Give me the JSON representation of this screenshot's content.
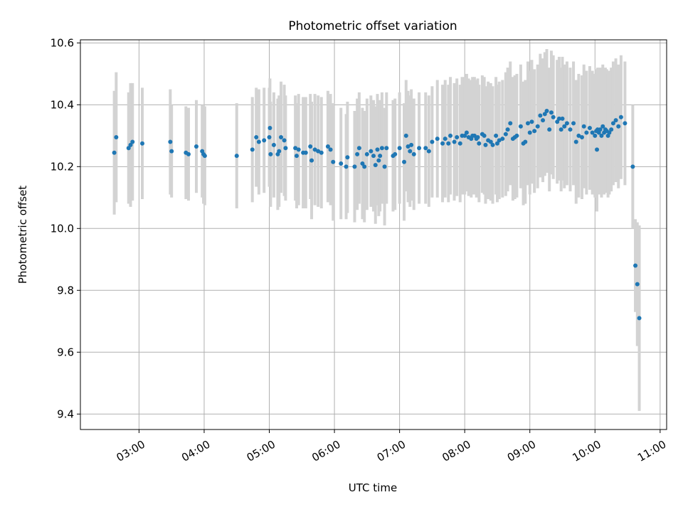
{
  "chart_data": {
    "type": "scatter",
    "title": "Photometric offset variation",
    "xlabel": "UTC time",
    "ylabel": "Photometric offset",
    "grid": true,
    "xlim": [
      2.1,
      11.1
    ],
    "ylim": [
      9.35,
      10.61
    ],
    "x_ticks": [
      {
        "value": 3,
        "label": "03:00"
      },
      {
        "value": 4,
        "label": "04:00"
      },
      {
        "value": 5,
        "label": "05:00"
      },
      {
        "value": 6,
        "label": "06:00"
      },
      {
        "value": 7,
        "label": "07:00"
      },
      {
        "value": 8,
        "label": "08:00"
      },
      {
        "value": 9,
        "label": "09:00"
      },
      {
        "value": 10,
        "label": "10:00"
      },
      {
        "value": 11,
        "label": "11:00"
      }
    ],
    "y_ticks": [
      {
        "value": 9.4,
        "label": "9.4"
      },
      {
        "value": 9.6,
        "label": "9.6"
      },
      {
        "value": 9.8,
        "label": "9.8"
      },
      {
        "value": 10.0,
        "label": "10.0"
      },
      {
        "value": 10.2,
        "label": "10.2"
      },
      {
        "value": 10.4,
        "label": "10.4"
      },
      {
        "value": 10.6,
        "label": "10.6"
      }
    ],
    "colors": {
      "point": "#1f77b4",
      "error_bar": "#d3d3d3",
      "grid": "#b0b0b0"
    },
    "points": [
      [
        2.62,
        10.245,
        0.2
      ],
      [
        2.65,
        10.295,
        0.21
      ],
      [
        2.84,
        10.26,
        0.18
      ],
      [
        2.87,
        10.27,
        0.2
      ],
      [
        2.9,
        10.28,
        0.19
      ],
      [
        3.05,
        10.275,
        0.18
      ],
      [
        3.48,
        10.28,
        0.17
      ],
      [
        3.5,
        10.25,
        0.15
      ],
      [
        3.72,
        10.245,
        0.15
      ],
      [
        3.76,
        10.24,
        0.15
      ],
      [
        3.88,
        10.265,
        0.15
      ],
      [
        3.97,
        10.25,
        0.15
      ],
      [
        3.99,
        10.24,
        0.16
      ],
      [
        4.01,
        10.235,
        0.16
      ],
      [
        4.5,
        10.235,
        0.17
      ],
      [
        4.74,
        10.255,
        0.17
      ],
      [
        4.8,
        10.295,
        0.16
      ],
      [
        4.84,
        10.28,
        0.17
      ],
      [
        4.92,
        10.285,
        0.17
      ],
      [
        5.0,
        10.295,
        0.16
      ],
      [
        5.01,
        10.325,
        0.16
      ],
      [
        5.02,
        10.24,
        0.17
      ],
      [
        5.07,
        10.27,
        0.17
      ],
      [
        5.13,
        10.24,
        0.18
      ],
      [
        5.15,
        10.25,
        0.18
      ],
      [
        5.18,
        10.295,
        0.18
      ],
      [
        5.23,
        10.285,
        0.18
      ],
      [
        5.25,
        10.26,
        0.17
      ],
      [
        5.4,
        10.26,
        0.17
      ],
      [
        5.42,
        10.235,
        0.17
      ],
      [
        5.45,
        10.255,
        0.18
      ],
      [
        5.52,
        10.245,
        0.18
      ],
      [
        5.56,
        10.245,
        0.18
      ],
      [
        5.63,
        10.265,
        0.17
      ],
      [
        5.65,
        10.22,
        0.19
      ],
      [
        5.7,
        10.255,
        0.18
      ],
      [
        5.75,
        10.25,
        0.18
      ],
      [
        5.8,
        10.245,
        0.18
      ],
      [
        5.9,
        10.265,
        0.18
      ],
      [
        5.94,
        10.255,
        0.18
      ],
      [
        5.98,
        10.215,
        0.19
      ],
      [
        6.1,
        10.21,
        0.18
      ],
      [
        6.18,
        10.2,
        0.17
      ],
      [
        6.2,
        10.23,
        0.18
      ],
      [
        6.31,
        10.2,
        0.18
      ],
      [
        6.35,
        10.24,
        0.18
      ],
      [
        6.38,
        10.26,
        0.18
      ],
      [
        6.43,
        10.21,
        0.18
      ],
      [
        6.46,
        10.2,
        0.18
      ],
      [
        6.5,
        10.24,
        0.18
      ],
      [
        6.56,
        10.25,
        0.18
      ],
      [
        6.6,
        10.235,
        0.18
      ],
      [
        6.63,
        10.205,
        0.19
      ],
      [
        6.66,
        10.255,
        0.18
      ],
      [
        6.68,
        10.22,
        0.18
      ],
      [
        6.7,
        10.235,
        0.18
      ],
      [
        6.73,
        10.26,
        0.18
      ],
      [
        6.77,
        10.2,
        0.19
      ],
      [
        6.8,
        10.26,
        0.18
      ],
      [
        6.9,
        10.235,
        0.18
      ],
      [
        6.93,
        10.24,
        0.18
      ],
      [
        7.0,
        10.26,
        0.18
      ],
      [
        7.07,
        10.215,
        0.19
      ],
      [
        7.1,
        10.3,
        0.18
      ],
      [
        7.13,
        10.265,
        0.18
      ],
      [
        7.16,
        10.25,
        0.18
      ],
      [
        7.18,
        10.27,
        0.18
      ],
      [
        7.22,
        10.24,
        0.18
      ],
      [
        7.3,
        10.26,
        0.18
      ],
      [
        7.4,
        10.26,
        0.18
      ],
      [
        7.45,
        10.25,
        0.18
      ],
      [
        7.5,
        10.28,
        0.18
      ],
      [
        7.58,
        10.29,
        0.19
      ],
      [
        7.66,
        10.275,
        0.19
      ],
      [
        7.7,
        10.29,
        0.19
      ],
      [
        7.75,
        10.275,
        0.19
      ],
      [
        7.78,
        10.3,
        0.19
      ],
      [
        7.84,
        10.28,
        0.19
      ],
      [
        7.88,
        10.295,
        0.19
      ],
      [
        7.93,
        10.275,
        0.19
      ],
      [
        7.96,
        10.3,
        0.19
      ],
      [
        8.0,
        10.3,
        0.19
      ],
      [
        8.03,
        10.31,
        0.19
      ],
      [
        8.06,
        10.295,
        0.19
      ],
      [
        8.1,
        10.29,
        0.19
      ],
      [
        8.12,
        10.3,
        0.19
      ],
      [
        8.15,
        10.3,
        0.19
      ],
      [
        8.18,
        10.29,
        0.19
      ],
      [
        8.2,
        10.295,
        0.19
      ],
      [
        8.22,
        10.275,
        0.19
      ],
      [
        8.27,
        10.305,
        0.19
      ],
      [
        8.3,
        10.3,
        0.19
      ],
      [
        8.32,
        10.27,
        0.19
      ],
      [
        8.36,
        10.285,
        0.19
      ],
      [
        8.4,
        10.28,
        0.19
      ],
      [
        8.43,
        10.27,
        0.19
      ],
      [
        8.48,
        10.3,
        0.19
      ],
      [
        8.5,
        10.275,
        0.19
      ],
      [
        8.53,
        10.285,
        0.19
      ],
      [
        8.58,
        10.29,
        0.19
      ],
      [
        8.63,
        10.305,
        0.2
      ],
      [
        8.66,
        10.32,
        0.2
      ],
      [
        8.7,
        10.34,
        0.2
      ],
      [
        8.74,
        10.29,
        0.2
      ],
      [
        8.77,
        10.295,
        0.2
      ],
      [
        8.8,
        10.3,
        0.2
      ],
      [
        8.86,
        10.33,
        0.2
      ],
      [
        8.9,
        10.275,
        0.2
      ],
      [
        8.93,
        10.28,
        0.2
      ],
      [
        8.97,
        10.34,
        0.2
      ],
      [
        9.0,
        10.31,
        0.2
      ],
      [
        9.03,
        10.345,
        0.2
      ],
      [
        9.07,
        10.315,
        0.2
      ],
      [
        9.12,
        10.33,
        0.2
      ],
      [
        9.16,
        10.365,
        0.2
      ],
      [
        9.2,
        10.35,
        0.2
      ],
      [
        9.23,
        10.37,
        0.2
      ],
      [
        9.26,
        10.38,
        0.2
      ],
      [
        9.3,
        10.32,
        0.2
      ],
      [
        9.33,
        10.375,
        0.2
      ],
      [
        9.36,
        10.36,
        0.2
      ],
      [
        9.42,
        10.345,
        0.2
      ],
      [
        9.45,
        10.355,
        0.2
      ],
      [
        9.48,
        10.32,
        0.2
      ],
      [
        9.5,
        10.355,
        0.2
      ],
      [
        9.53,
        10.33,
        0.2
      ],
      [
        9.57,
        10.34,
        0.2
      ],
      [
        9.62,
        10.32,
        0.2
      ],
      [
        9.67,
        10.34,
        0.2
      ],
      [
        9.71,
        10.28,
        0.2
      ],
      [
        9.75,
        10.3,
        0.2
      ],
      [
        9.8,
        10.295,
        0.2
      ],
      [
        9.83,
        10.33,
        0.2
      ],
      [
        9.87,
        10.31,
        0.2
      ],
      [
        9.92,
        10.325,
        0.2
      ],
      [
        9.96,
        10.31,
        0.2
      ],
      [
        10.0,
        10.3,
        0.2
      ],
      [
        10.02,
        10.315,
        0.2
      ],
      [
        10.04,
        10.32,
        0.2
      ],
      [
        10.06,
        10.31,
        0.2
      ],
      [
        10.08,
        10.32,
        0.2
      ],
      [
        10.1,
        10.3,
        0.2
      ],
      [
        10.12,
        10.33,
        0.2
      ],
      [
        10.14,
        10.31,
        0.2
      ],
      [
        10.16,
        10.32,
        0.2
      ],
      [
        10.18,
        10.315,
        0.2
      ],
      [
        10.2,
        10.3,
        0.2
      ],
      [
        10.22,
        10.31,
        0.2
      ],
      [
        10.25,
        10.32,
        0.2
      ],
      [
        10.28,
        10.34,
        0.2
      ],
      [
        10.32,
        10.35,
        0.2
      ],
      [
        10.36,
        10.33,
        0.2
      ],
      [
        10.4,
        10.36,
        0.2
      ],
      [
        10.46,
        10.34,
        0.2
      ],
      [
        10.03,
        10.255,
        0.2
      ],
      [
        10.58,
        10.2,
        0.2
      ],
      [
        10.62,
        9.88,
        0.15
      ],
      [
        10.65,
        9.82,
        0.2
      ],
      [
        10.68,
        9.71,
        0.3
      ]
    ]
  }
}
